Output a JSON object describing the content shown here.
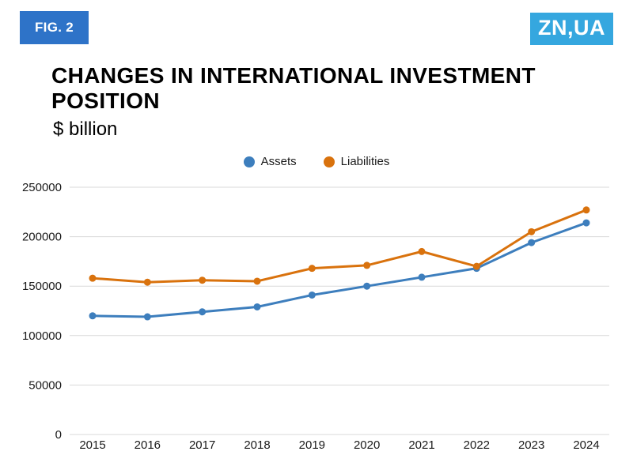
{
  "figure_badge": "FIG. 2",
  "logo": "ZN,UA",
  "title_line1": "CHANGES IN INTERNATIONAL INVESTMENT",
  "title_line2": "POSITION",
  "subtitle": "$ billion",
  "legend": [
    {
      "label": "Assets",
      "color": "#3d7ebd"
    },
    {
      "label": "Liabilities",
      "color": "#d9720d"
    }
  ],
  "colors": {
    "badge_bg": "#2e73c8",
    "logo_bg": "#35a7df",
    "assets_line": "#3d7ebd",
    "liabilities_line": "#d9720d",
    "gridline": "#d9d9d9",
    "tick_text": "#1a1a1a"
  },
  "chart_data": {
    "type": "line",
    "title": "Changes in international investment position",
    "ylabel": "$ billion",
    "xlabel": "",
    "categories": [
      "2015",
      "2016",
      "2017",
      "2018",
      "2019",
      "2020",
      "2021",
      "2022",
      "2023",
      "2024"
    ],
    "series": [
      {
        "name": "Assets",
        "color": "#3d7ebd",
        "values": [
          120000,
          119000,
          124000,
          129000,
          141000,
          150000,
          159000,
          168000,
          194000,
          214000
        ]
      },
      {
        "name": "Liabilities",
        "color": "#d9720d",
        "values": [
          158000,
          154000,
          156000,
          155000,
          168000,
          171000,
          185000,
          170000,
          205000,
          227000
        ]
      }
    ],
    "ylim": [
      0,
      250000
    ],
    "ytick_step": 50000,
    "ytick_labels": [
      "0",
      "50000",
      "100000",
      "150000",
      "200000",
      "250000"
    ],
    "grid": true,
    "legend_position": "top-center"
  }
}
